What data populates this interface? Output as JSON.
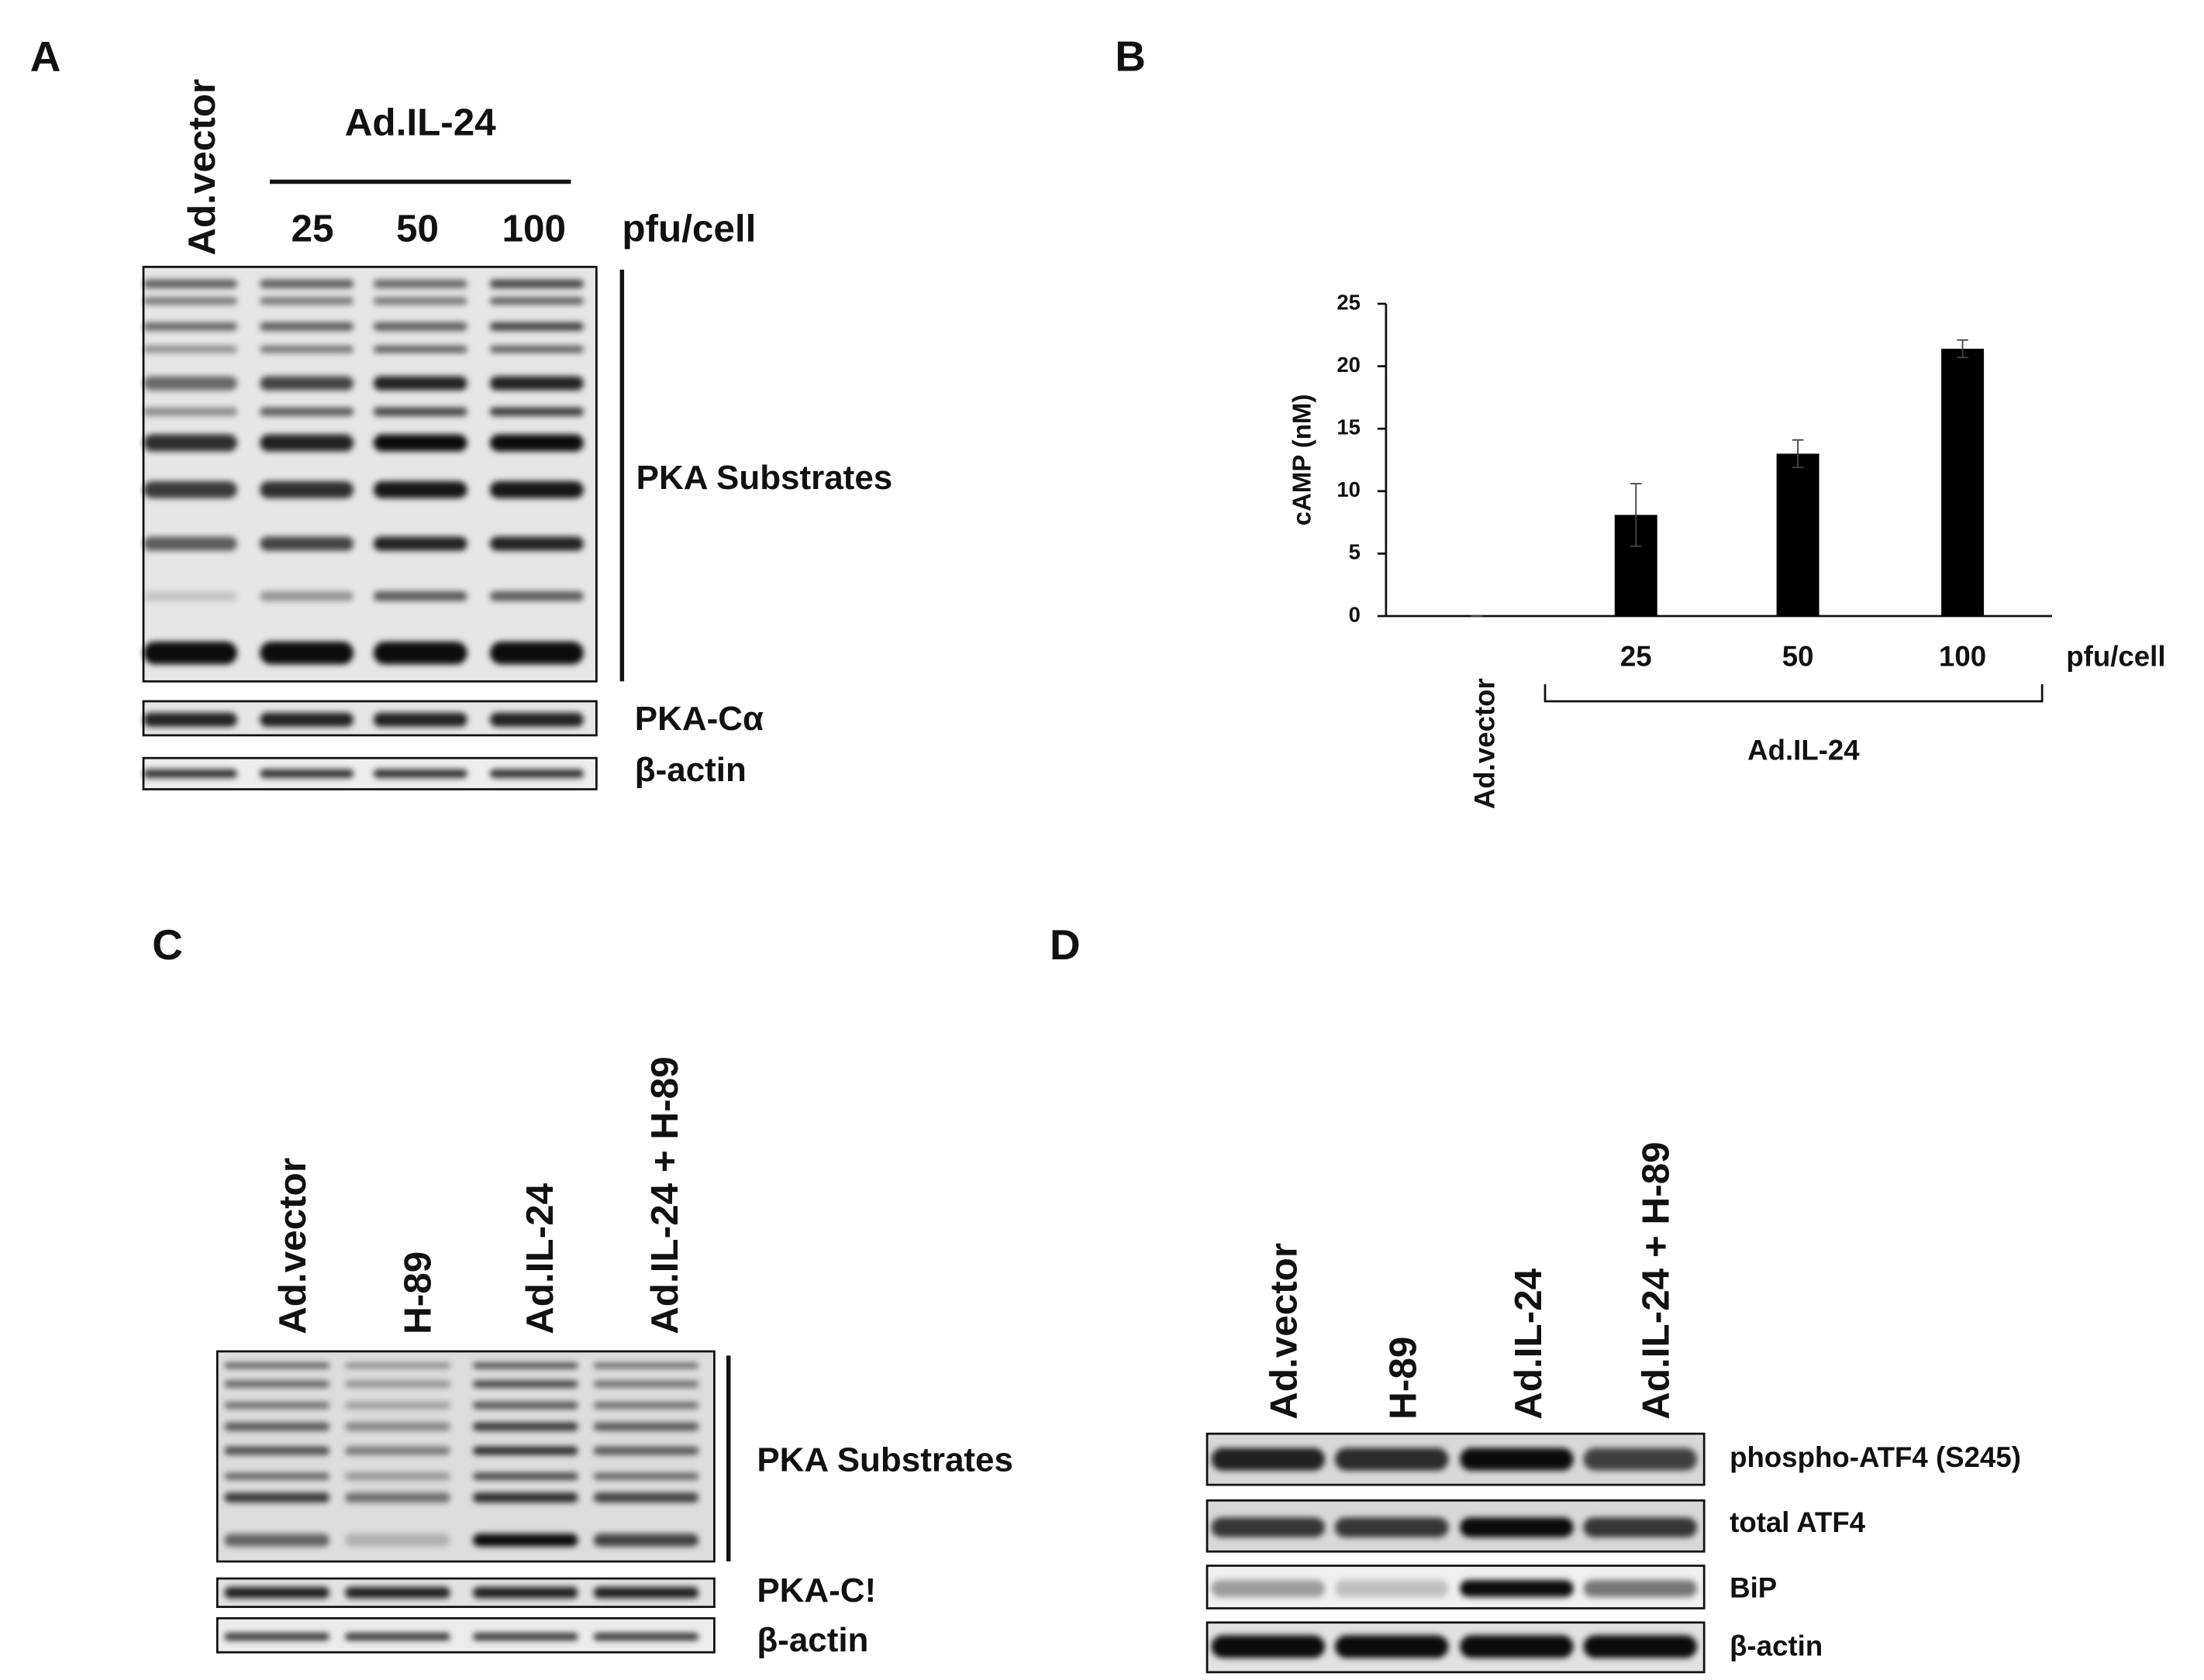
{
  "panel_a": {
    "panel_label": "A",
    "control_lane": "Ad.vector",
    "treatment": "Ad.IL-24",
    "doses": [
      "25",
      "50",
      "100"
    ],
    "dose_unit": "pfu/cell",
    "blots": [
      "PKA Substrates",
      "PKA-Cα",
      "β-actin"
    ]
  },
  "chart_data": {
    "type": "bar",
    "panel_label": "B",
    "categories": [
      "Ad.vector",
      "25",
      "50",
      "100"
    ],
    "values": [
      0,
      8.1,
      13,
      21.4
    ],
    "errors": [
      0,
      2.5,
      1.1,
      0.7
    ],
    "color": "#000000",
    "y_label": "cAMP (nM)",
    "ylim": [
      0,
      25
    ],
    "yticks": [
      0,
      5,
      10,
      15,
      20,
      25
    ],
    "x_unit": "pfu/cell",
    "group_label": "Ad.IL-24"
  },
  "panel_c": {
    "panel_label": "C",
    "lanes": [
      "Ad.vector",
      "H-89",
      "Ad.IL-24",
      "Ad.IL-24 + H-89"
    ],
    "blots": [
      "PKA Substrates",
      "PKA-C!",
      "β-actin"
    ]
  },
  "panel_d": {
    "panel_label": "D",
    "lanes": [
      "Ad.vector",
      "H-89",
      "Ad.IL-24",
      "Ad.IL-24 + H-89"
    ],
    "blots": [
      "phospho-ATF4 (S245)",
      "total ATF4",
      "BiP",
      "β-actin"
    ]
  }
}
